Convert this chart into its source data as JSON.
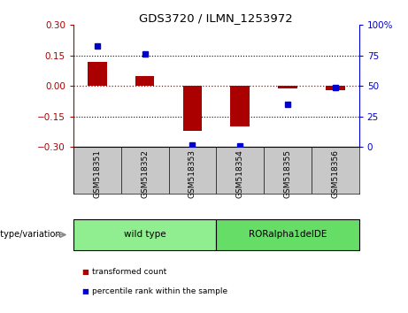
{
  "title": "GDS3720 / ILMN_1253972",
  "samples": [
    "GSM518351",
    "GSM518352",
    "GSM518353",
    "GSM518354",
    "GSM518355",
    "GSM518356"
  ],
  "red_bars": [
    0.12,
    0.05,
    -0.22,
    -0.2,
    -0.01,
    -0.02
  ],
  "blue_dots": [
    83,
    76,
    2,
    1,
    35,
    49
  ],
  "ylim_left": [
    -0.3,
    0.3
  ],
  "ylim_right": [
    0,
    100
  ],
  "yticks_left": [
    -0.3,
    -0.15,
    0,
    0.15,
    0.3
  ],
  "yticks_right": [
    0,
    25,
    50,
    75,
    100
  ],
  "hlines": [
    0.15,
    -0.15
  ],
  "red_color": "#aa0000",
  "blue_color": "#0000cc",
  "dashed_zero_color": "#cc0000",
  "group_label_prefix": "genotype/variation",
  "groups": [
    {
      "label": "wild type",
      "xstart": 0,
      "xend": 3,
      "color": "#90ee90"
    },
    {
      "label": "RORalpha1delDE",
      "xstart": 3,
      "xend": 6,
      "color": "#66dd66"
    }
  ],
  "legend_red": "transformed count",
  "legend_blue": "percentile rank within the sample",
  "background_color": "#ffffff",
  "plot_bg": "#ffffff",
  "sample_box_color": "#c8c8c8",
  "bar_width": 0.4
}
